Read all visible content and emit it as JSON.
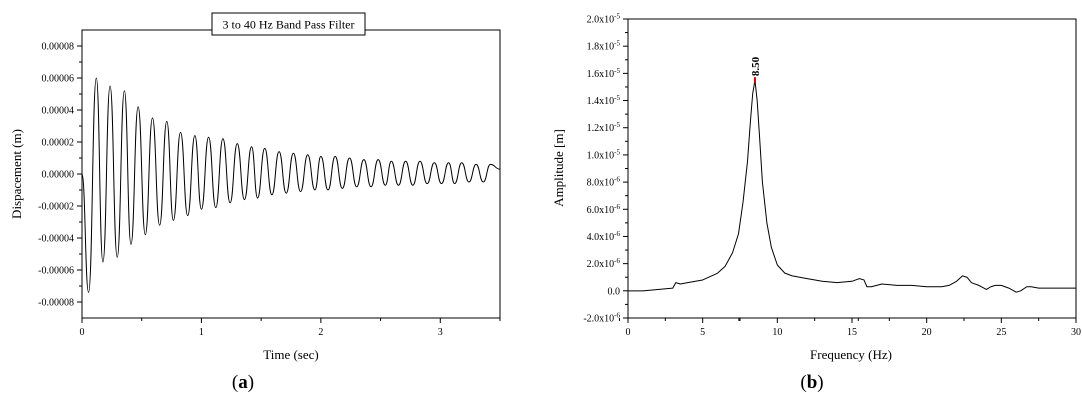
{
  "chart_data": [
    {
      "panel": "a",
      "type": "line",
      "legend_label": "3 to 40 Hz Band Pass Filter",
      "legend_placement": "top-center",
      "xlabel": "Time (sec)",
      "ylabel": "Dispacement (m)",
      "xlim": [
        0,
        3.5
      ],
      "ylim": [
        -9e-05,
        9e-05
      ],
      "x_ticks": [
        0,
        1,
        2,
        3
      ],
      "x_tick_labels": [
        "0",
        "1",
        "2",
        "3"
      ],
      "y_ticks": [
        -8e-05,
        -6e-05,
        -4e-05,
        -2e-05,
        0,
        2e-05,
        4e-05,
        6e-05,
        8e-05
      ],
      "y_tick_labels": [
        "-0.00008",
        "-0.00006",
        "-0.00004",
        "-0.00002",
        "0.00000",
        "0.00002",
        "0.00004",
        "0.00006",
        "0.00008"
      ],
      "grid": false,
      "series": [
        {
          "signal": "damped oscillation",
          "frequency_hz": 8.5,
          "peaks": [
            [
              0.12,
              6e-05
            ],
            [
              0.235,
              5.5e-05
            ],
            [
              0.355,
              5.2e-05
            ],
            [
              0.47,
              4.2e-05
            ],
            [
              0.59,
              3.5e-05
            ],
            [
              0.71,
              3.3e-05
            ],
            [
              0.825,
              2.6e-05
            ],
            [
              0.945,
              2.4e-05
            ],
            [
              1.06,
              2.3e-05
            ],
            [
              1.18,
              2.2e-05
            ],
            [
              1.3,
              1.9e-05
            ],
            [
              1.42,
              1.7e-05
            ],
            [
              1.53,
              1.6e-05
            ],
            [
              1.65,
              1.4e-05
            ],
            [
              1.77,
              1.3e-05
            ],
            [
              1.89,
              1.2e-05
            ],
            [
              2.0,
              1.1e-05
            ],
            [
              2.12,
              1.1e-05
            ],
            [
              2.24,
              1e-05
            ],
            [
              2.36,
              9e-06
            ],
            [
              2.48,
              9e-06
            ],
            [
              2.59,
              8e-06
            ],
            [
              2.71,
              8e-06
            ],
            [
              2.83,
              8e-06
            ],
            [
              2.95,
              7e-06
            ],
            [
              3.07,
              7e-06
            ],
            [
              3.18,
              7e-06
            ],
            [
              3.3,
              6e-06
            ],
            [
              3.42,
              6e-06
            ]
          ],
          "troughs": [
            [
              0.055,
              -7.4e-05
            ],
            [
              0.175,
              -5.5e-05
            ],
            [
              0.295,
              -5.2e-05
            ],
            [
              0.41,
              -4.4e-05
            ],
            [
              0.53,
              -3.8e-05
            ],
            [
              0.65,
              -3.2e-05
            ],
            [
              0.765,
              -2.9e-05
            ],
            [
              0.885,
              -2.6e-05
            ],
            [
              1.0,
              -2.2e-05
            ],
            [
              1.12,
              -2.1e-05
            ],
            [
              1.24,
              -1.8e-05
            ],
            [
              1.36,
              -1.6e-05
            ],
            [
              1.47,
              -1.5e-05
            ],
            [
              1.59,
              -1.3e-05
            ],
            [
              1.71,
              -1.2e-05
            ],
            [
              1.83,
              -1.1e-05
            ],
            [
              1.95,
              -1e-05
            ],
            [
              2.06,
              -1e-05
            ],
            [
              2.18,
              -9e-06
            ],
            [
              2.3,
              -8e-06
            ],
            [
              2.42,
              -8e-06
            ],
            [
              2.54,
              -7e-06
            ],
            [
              2.65,
              -7e-06
            ],
            [
              2.77,
              -7e-06
            ],
            [
              2.89,
              -6e-06
            ],
            [
              3.01,
              -6e-06
            ],
            [
              3.12,
              -6e-06
            ],
            [
              3.24,
              -5e-06
            ],
            [
              3.36,
              -5e-06
            ]
          ],
          "end_point": [
            3.5,
            3e-06
          ]
        }
      ]
    },
    {
      "panel": "b",
      "type": "line",
      "xlabel": "Frequency (Hz)",
      "ylabel": "Amplitude [m]",
      "xlim": [
        0,
        30
      ],
      "ylim": [
        -2e-06,
        2e-05
      ],
      "x_ticks": [
        0,
        5,
        10,
        15,
        20,
        25,
        30
      ],
      "x_tick_labels": [
        "0",
        "5",
        "10",
        "15",
        "20",
        "25",
        "30"
      ],
      "y_ticks": [
        -2e-06,
        0,
        2e-06,
        4e-06,
        6e-06,
        8e-06,
        1e-05,
        1.2e-05,
        1.4e-05,
        1.6e-05,
        1.8e-05,
        2e-05
      ],
      "y_tick_labels": [
        {
          "mantissa": "-2.0x10",
          "exp": "-6"
        },
        {
          "mantissa": "0.0",
          "exp": ""
        },
        {
          "mantissa": "2.0x10",
          "exp": "-6"
        },
        {
          "mantissa": "4.0x10",
          "exp": "-6"
        },
        {
          "mantissa": "6.0x10",
          "exp": "-6"
        },
        {
          "mantissa": "8.0x10",
          "exp": "-6"
        },
        {
          "mantissa": "1.0x10",
          "exp": "-5"
        },
        {
          "mantissa": "1.2x10",
          "exp": "-5"
        },
        {
          "mantissa": "1.4x10",
          "exp": "-5"
        },
        {
          "mantissa": "1.6x10",
          "exp": "-5"
        },
        {
          "mantissa": "1.8x10",
          "exp": "-5"
        },
        {
          "mantissa": "2.0x10",
          "exp": "-5"
        }
      ],
      "grid": false,
      "annotation": {
        "text": "8.50",
        "x": 8.5,
        "y": 1.55e-05,
        "marker_color": "#cc0000"
      },
      "series": [
        {
          "x": [
            0,
            1,
            2,
            3,
            3.2,
            3.5,
            4,
            5,
            6,
            6.5,
            7,
            7.4,
            7.7,
            8.0,
            8.2,
            8.35,
            8.5,
            8.65,
            8.8,
            9.0,
            9.3,
            9.6,
            10,
            10.5,
            11,
            12,
            13,
            14,
            15,
            15.5,
            15.8,
            16,
            16.3,
            17,
            18,
            19,
            20,
            21,
            21.5,
            22,
            22.4,
            22.7,
            23,
            23.5,
            24,
            24.3,
            24.6,
            25,
            25.5,
            26,
            26.3,
            26.7,
            27,
            27.5,
            28,
            29,
            30
          ],
          "y": [
            0.0,
            0.0,
            1e-07,
            2e-07,
            6e-07,
            5e-07,
            6e-07,
            8e-07,
            1.3e-06,
            1.8e-06,
            2.8e-06,
            4.2e-06,
            6.5e-06,
            9.5e-06,
            1.25e-05,
            1.45e-05,
            1.55e-05,
            1.4e-05,
            1.15e-05,
            8e-06,
            5e-06,
            3.2e-06,
            1.9e-06,
            1.3e-06,
            1.1e-06,
            9e-07,
            7e-07,
            6e-07,
            7e-07,
            9e-07,
            8e-07,
            3e-07,
            3e-07,
            5e-07,
            4e-07,
            4e-07,
            3e-07,
            3e-07,
            4e-07,
            7e-07,
            1.1e-06,
            1e-06,
            6e-07,
            4e-07,
            1e-07,
            3e-07,
            4e-07,
            4e-07,
            2e-07,
            -1e-07,
            0.0,
            3e-07,
            3e-07,
            2e-07,
            2e-07,
            2e-07,
            2e-07
          ]
        }
      ]
    }
  ],
  "panel_labels": [
    {
      "open": "(",
      "letter": "a",
      "close": ")"
    },
    {
      "open": "(",
      "letter": "b",
      "close": ")"
    }
  ]
}
